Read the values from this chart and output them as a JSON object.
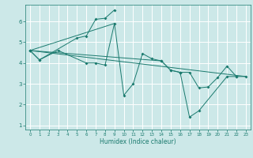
{
  "title": "",
  "xlabel": "Humidex (Indice chaleur)",
  "bg_color": "#cce8e8",
  "grid_color": "#ffffff",
  "line_color": "#1a7a6e",
  "xlim": [
    -0.5,
    23.5
  ],
  "ylim": [
    0.8,
    6.8
  ],
  "xticks": [
    0,
    1,
    2,
    3,
    4,
    5,
    6,
    7,
    8,
    9,
    10,
    11,
    12,
    13,
    14,
    15,
    16,
    17,
    18,
    19,
    20,
    21,
    22,
    23
  ],
  "yticks": [
    1,
    2,
    3,
    4,
    5,
    6
  ],
  "series1_x": [
    0,
    1,
    5,
    6,
    7,
    8,
    9
  ],
  "series1_y": [
    4.6,
    4.15,
    5.2,
    5.3,
    6.1,
    6.15,
    6.55
  ],
  "series2_x": [
    0,
    1,
    3,
    6,
    7,
    8,
    9,
    10,
    11,
    12,
    13,
    14,
    15,
    16
  ],
  "series2_y": [
    4.6,
    4.15,
    4.6,
    4.0,
    4.0,
    3.9,
    5.9,
    2.45,
    3.0,
    4.45,
    4.2,
    4.1,
    3.65,
    3.55
  ],
  "series3_x": [
    0,
    14,
    15,
    16,
    17,
    18,
    19,
    20,
    21,
    22,
    23
  ],
  "series3_y": [
    4.6,
    4.1,
    3.65,
    3.55,
    3.55,
    2.8,
    2.85,
    3.3,
    3.85,
    3.35,
    3.35
  ],
  "series4_x": [
    16,
    17,
    18,
    21,
    22
  ],
  "series4_y": [
    3.55,
    1.4,
    1.7,
    3.35,
    3.35
  ],
  "trend1_x": [
    0,
    23
  ],
  "trend1_y": [
    4.6,
    3.35
  ],
  "trend2_x": [
    0,
    9
  ],
  "trend2_y": [
    4.6,
    5.9
  ]
}
